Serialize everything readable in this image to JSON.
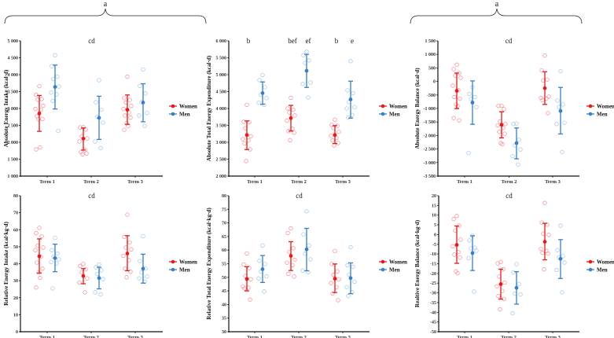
{
  "colors": {
    "women": "#e41a1c",
    "men": "#3a7fc1",
    "women_point": "#f4858a",
    "men_point": "#9cc2e6"
  },
  "brace_labels": [
    "a",
    "a"
  ],
  "legend": {
    "women": "Women",
    "men": "Men"
  },
  "terms": [
    "Term 1",
    "Term 2",
    "Term 3"
  ],
  "chart_data": [
    {
      "type": "scatter",
      "ylabel": "Absolute Energy Intake (kcal·d)",
      "ylim": [
        1000,
        5000
      ],
      "ystep": 500,
      "annotations": [
        {
          "text": "cd",
          "at": "center"
        }
      ],
      "groups": [
        {
          "term": "Term 1",
          "sex": "women",
          "mean": 2854,
          "ci": [
            2323,
            3385
          ],
          "points": [
            3660,
            3400,
            3280,
            3260,
            3080,
            2985,
            2960,
            2770,
            2690,
            2680,
            1850,
            1790
          ]
        },
        {
          "term": "Term 1",
          "sex": "men",
          "mean": 3638,
          "ci": [
            2985,
            4285
          ],
          "points": [
            4577,
            4250,
            3938,
            3870,
            3650,
            3470,
            3420,
            3220,
            2340
          ]
        },
        {
          "term": "Term 2",
          "sex": "women",
          "mean": 2108,
          "ci": [
            1770,
            2423
          ],
          "points": [
            2446,
            2440,
            2377,
            2177,
            2115,
            2023,
            1770,
            1715,
            1670,
            1646
          ]
        },
        {
          "term": "Term 2",
          "sex": "men",
          "mean": 2723,
          "ci": [
            2085,
            3362
          ],
          "points": [
            3838,
            3185,
            2962,
            2754,
            2585,
            2023,
            1830
          ]
        },
        {
          "term": "Term 3",
          "sex": "women",
          "mean": 2962,
          "ci": [
            2531,
            3400
          ],
          "points": [
            3938,
            3308,
            3254,
            3177,
            3077,
            2985,
            2885,
            2792,
            2731,
            2562,
            2477,
            2369
          ]
        },
        {
          "term": "Term 3",
          "sex": "men",
          "mean": 3177,
          "ci": [
            2608,
            3731
          ],
          "points": [
            4154,
            3669,
            3446,
            3185,
            2870,
            2792,
            2485
          ]
        }
      ]
    },
    {
      "type": "scatter",
      "ylabel": "Absolute Total Energy Expenditure (kcal·d)",
      "ylim": [
        2000,
        6000
      ],
      "ystep": 500,
      "annotations": [
        {
          "text": "b",
          "at": 0
        },
        {
          "text": "bef",
          "at": 2
        },
        {
          "text": "ef",
          "at": 3
        },
        {
          "text": "b",
          "at": 4
        },
        {
          "text": "e",
          "at": 5
        }
      ],
      "groups": [
        {
          "term": "Term 1",
          "sex": "women",
          "mean": 3215,
          "ci": [
            2785,
            3631
          ],
          "points": [
            4108,
            3608,
            3592,
            3415,
            3177,
            3092,
            3054,
            2962,
            2792,
            2446
          ]
        },
        {
          "term": "Term 1",
          "sex": "men",
          "mean": 4454,
          "ci": [
            4123,
            4785
          ],
          "points": [
            4992,
            4838,
            4631,
            4408,
            4308,
            4169,
            4108
          ]
        },
        {
          "term": "Term 2",
          "sex": "women",
          "mean": 3715,
          "ci": [
            3331,
            4092
          ],
          "points": [
            4315,
            4000,
            3962,
            3885,
            3792,
            3638,
            3400,
            3331,
            3285,
            3062
          ]
        },
        {
          "term": "Term 2",
          "sex": "men",
          "mean": 5115,
          "ci": [
            4623,
            5600
          ],
          "points": [
            5677,
            5577,
            5423,
            5346,
            4769,
            4723,
            4323
          ]
        },
        {
          "term": "Term 3",
          "sex": "women",
          "mean": 3215,
          "ci": [
            2962,
            3492
          ],
          "points": [
            3669,
            3515,
            3485,
            3423,
            3308,
            3192,
            3131,
            3054,
            2977,
            2908
          ]
        },
        {
          "term": "Term 3",
          "sex": "men",
          "mean": 4269,
          "ci": [
            3715,
            4808
          ],
          "points": [
            5400,
            4538,
            4454,
            4192,
            4038,
            4000,
            3808,
            3731
          ]
        }
      ]
    },
    {
      "type": "scatter",
      "ylabel": "Absolute Energy Balance (kcal·d)",
      "ylim": [
        -3500,
        1500
      ],
      "ystep": 500,
      "annotations": [
        {
          "text": "cd",
          "at": "center"
        }
      ],
      "groups": [
        {
          "term": "Term 1",
          "sex": "women",
          "mean": -347,
          "ci": [
            -1005,
            310
          ],
          "points": [
            620,
            455,
            310,
            215,
            135,
            -155,
            -320,
            -580,
            -640,
            -850,
            -910,
            -1353,
            -1440
          ]
        },
        {
          "term": "Term 1",
          "sex": "men",
          "mean": -782,
          "ci": [
            -1585,
            20
          ],
          "points": [
            -220,
            -463,
            -580,
            -640,
            -945,
            -2650
          ]
        },
        {
          "term": "Term 2",
          "sex": "women",
          "mean": -1604,
          "ci": [
            -2088,
            -1121
          ],
          "points": [
            -898,
            -905,
            -1024,
            -1478,
            -1575,
            -1624,
            -1720,
            -1866,
            -1934,
            -2280,
            -2320
          ]
        },
        {
          "term": "Term 2",
          "sex": "men",
          "mean": -2280,
          "ci": [
            -2862,
            -1720
          ],
          "points": [
            -1556,
            -1575,
            -2155,
            -2368,
            -2514,
            -2765,
            -3075
          ]
        },
        {
          "term": "Term 3",
          "sex": "women",
          "mean": -250,
          "ci": [
            -850,
            359
          ],
          "points": [
            958,
            407,
            68,
            40,
            -560,
            -608,
            -637,
            -686,
            -1170
          ]
        },
        {
          "term": "Term 3",
          "sex": "men",
          "mean": -1092,
          "ci": [
            -1943,
            -221
          ],
          "points": [
            378,
            -705,
            -850,
            -947,
            -1527,
            -1575,
            -2610
          ]
        }
      ]
    },
    {
      "type": "scatter",
      "ylabel": "Relative Energy Intake (kcal·kg·d)",
      "ylim": [
        0,
        80
      ],
      "ystep": 10,
      "annotations": [
        {
          "text": "cd",
          "at": "center"
        }
      ],
      "groups": [
        {
          "term": "Term 1",
          "sex": "women",
          "mean": 44.4,
          "ci": [
            34.5,
            54.6
          ],
          "points": [
            61.1,
            58.0,
            56.2,
            50.6,
            49.5,
            48.0,
            44.1,
            40.7,
            37.1,
            34.8,
            31.7,
            26.0
          ]
        },
        {
          "term": "Term 1",
          "sex": "men",
          "mean": 43.3,
          "ci": [
            35.3,
            51.5
          ],
          "points": [
            55.2,
            48.0,
            46.0,
            44.1,
            42.6,
            41.0,
            40.2,
            25.5
          ]
        },
        {
          "term": "Term 2",
          "sex": "women",
          "mean": 32.8,
          "ci": [
            28.2,
            37.1
          ],
          "points": [
            39.9,
            38.7,
            36.7,
            34.8,
            31.4,
            28.9,
            23.2
          ]
        },
        {
          "term": "Term 2",
          "sex": "men",
          "mean": 31.6,
          "ci": [
            25.2,
            37.9
          ],
          "points": [
            39.5,
            37.9,
            36.1,
            34.0,
            30.9,
            23.2,
            22.0
          ]
        },
        {
          "term": "Term 3",
          "sex": "women",
          "mean": 46.0,
          "ci": [
            35.9,
            56.5
          ],
          "points": [
            68.9,
            55.7,
            52.6,
            49.5,
            48.4,
            44.6,
            42.1,
            37.1,
            35.3,
            32.0
          ]
        },
        {
          "term": "Term 3",
          "sex": "men",
          "mean": 37.1,
          "ci": [
            28.6,
            45.6
          ],
          "points": [
            56.2,
            41.5,
            37.1,
            34.8,
            32.5,
            31.4,
            29.4
          ]
        }
      ]
    },
    {
      "type": "scatter",
      "ylabel": "Relative Total Energy Expenditure (kcal·kg·d)",
      "ylim": [
        30,
        80
      ],
      "ystep": 5,
      "annotations": [
        {
          "text": "cd",
          "at": "center"
        }
      ],
      "groups": [
        {
          "term": "Term 1",
          "sex": "women",
          "mean": 49.4,
          "ci": [
            45.0,
            53.9
          ],
          "points": [
            58.8,
            54.7,
            53.4,
            50.5,
            49.3,
            46.7,
            46.2,
            45.9,
            41.8
          ]
        },
        {
          "term": "Term 1",
          "sex": "men",
          "mean": 53.0,
          "ci": [
            48.1,
            58.0
          ],
          "points": [
            61.7,
            56.1,
            54.9,
            52.1,
            50.4,
            49.6,
            44.8
          ]
        },
        {
          "term": "Term 2",
          "sex": "women",
          "mean": 57.9,
          "ci": [
            52.5,
            63.1
          ],
          "points": [
            68.0,
            66.3,
            60.7,
            59.3,
            56.4,
            55.4,
            54.5,
            51.3,
            50.3
          ]
        },
        {
          "term": "Term 2",
          "sex": "men",
          "mean": 60.3,
          "ci": [
            52.4,
            68.0
          ],
          "points": [
            74.3,
            65.8,
            61.7,
            58.7,
            56.6,
            52.5,
            51.9
          ]
        },
        {
          "term": "Term 3",
          "sex": "women",
          "mean": 49.5,
          "ci": [
            44.4,
            54.9
          ],
          "points": [
            59.7,
            54.9,
            52.2,
            50.9,
            49.3,
            47.9,
            46.4,
            44.0,
            41.6
          ]
        },
        {
          "term": "Term 3",
          "sex": "men",
          "mean": 49.7,
          "ci": [
            44.0,
            55.3
          ],
          "points": [
            61.1,
            54.4,
            53.9,
            51.0,
            48.4,
            46.4,
            44.5,
            43.1
          ]
        }
      ]
    },
    {
      "type": "scatter",
      "ylabel": "Realtive Energy Balance (kcal·kg·d)",
      "ylim": [
        -50,
        20
      ],
      "ystep": 5,
      "annotations": [
        {
          "text": "cd",
          "at": "center"
        }
      ],
      "groups": [
        {
          "term": "Term 1",
          "sex": "women",
          "mean": -5.3,
          "ci": [
            -14.8,
            4.4
          ],
          "points": [
            9.6,
            8.0,
            4.6,
            2.1,
            -2.6,
            -6.0,
            -9.0,
            -10.3,
            -11.8,
            -18.9,
            -19.9
          ]
        },
        {
          "term": "Term 1",
          "sex": "men",
          "mean": -9.5,
          "ci": [
            -18.5,
            -0.6
          ],
          "points": [
            -0.6,
            -3.0,
            -6.7,
            -7.1,
            -8.3,
            -12.1,
            -29.3
          ]
        },
        {
          "term": "Term 2",
          "sex": "women",
          "mean": -25.5,
          "ci": [
            -33.2,
            -17.8
          ],
          "points": [
            -14.1,
            -14.8,
            -17.8,
            -21.6,
            -24.7,
            -26.6,
            -29.0,
            -31.7,
            -33.1,
            -38.5
          ]
        },
        {
          "term": "Term 2",
          "sex": "men",
          "mean": -27.4,
          "ci": [
            -35.8,
            -19.1
          ],
          "points": [
            -15.2,
            -19.5,
            -25.4,
            -30.4,
            -30.8,
            -40.5
          ]
        },
        {
          "term": "Term 3",
          "sex": "women",
          "mean": -3.7,
          "ci": [
            -13.0,
            5.8
          ],
          "points": [
            16.3,
            6.2,
            5.1,
            0.5,
            -0.2,
            -7.3,
            -8.4,
            -9.4,
            -9.8,
            -17.9
          ]
        },
        {
          "term": "Term 3",
          "sex": "men",
          "mean": -12.5,
          "ci": [
            -22.6,
            -2.6
          ],
          "points": [
            4.6,
            -8.0,
            -11.1,
            -11.8,
            -14.4,
            -18.2,
            -29.7
          ]
        }
      ]
    }
  ]
}
